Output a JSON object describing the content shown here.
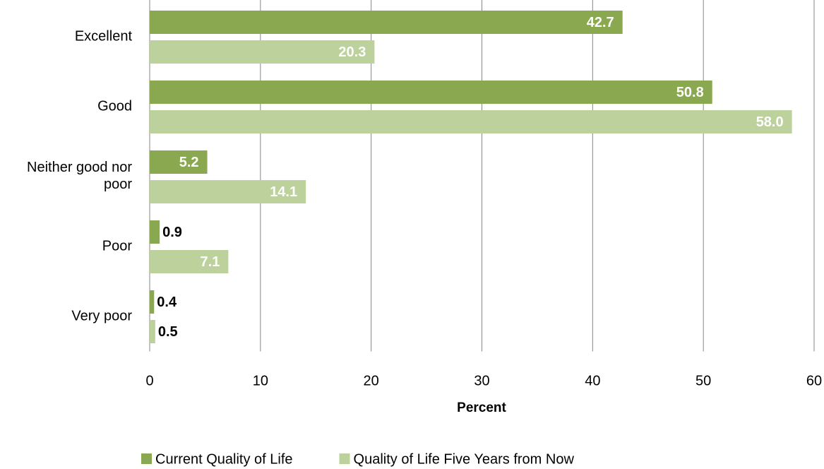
{
  "chart_data": {
    "type": "hbar",
    "categories": [
      "Excellent",
      "Good",
      "Neither good nor poor",
      "Poor",
      "Very poor"
    ],
    "series": [
      {
        "name": "Current Quality of Life",
        "color": "#8aa84f",
        "values": [
          42.7,
          50.8,
          5.2,
          0.9,
          0.4
        ]
      },
      {
        "name": "Quality of Life Five Years from Now",
        "color": "#bcd19b",
        "values": [
          20.3,
          58.0,
          14.1,
          7.1,
          0.5
        ],
        "value_labels": [
          "20.3",
          "58.0",
          "14.1",
          "7.1",
          "0.5"
        ]
      }
    ],
    "xlabel": "Percent",
    "xlim": [
      0,
      60
    ],
    "xticks": [
      0,
      10,
      20,
      30,
      40,
      50,
      60
    ],
    "grid": true,
    "legend": "bottom"
  }
}
